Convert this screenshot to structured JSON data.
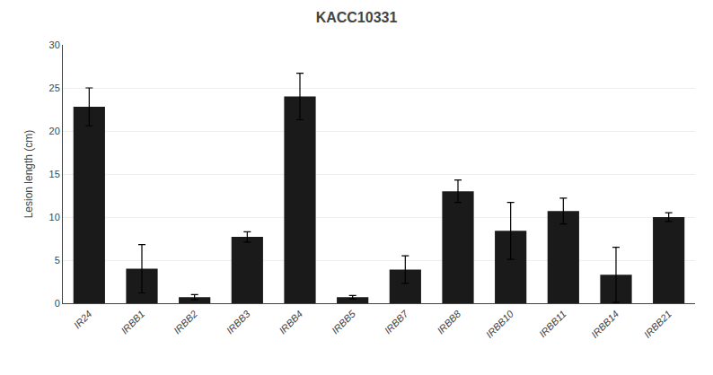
{
  "chart_data": {
    "type": "bar",
    "title": "KACC10331",
    "ylabel": "Lesion length (cm)",
    "categories": [
      "IR24",
      "IRBB1",
      "IRBB2",
      "IRBB3",
      "IRBB4",
      "IRBB5",
      "IRBB7",
      "IRBB8",
      "IRBB10",
      "IRBB11",
      "IRBB14",
      "IRBB21"
    ],
    "values": [
      22.8,
      4.0,
      0.7,
      7.7,
      24.0,
      0.7,
      3.9,
      13.0,
      8.4,
      10.7,
      3.3,
      10.0
    ],
    "errors": [
      2.2,
      2.8,
      0.3,
      0.6,
      2.7,
      0.2,
      1.6,
      1.3,
      3.3,
      1.5,
      3.2,
      0.5
    ],
    "color": "#1a1a1a",
    "ylim": [
      0,
      30
    ],
    "yticks": [
      0,
      5,
      10,
      15,
      20,
      25,
      30
    ],
    "grid": true
  }
}
